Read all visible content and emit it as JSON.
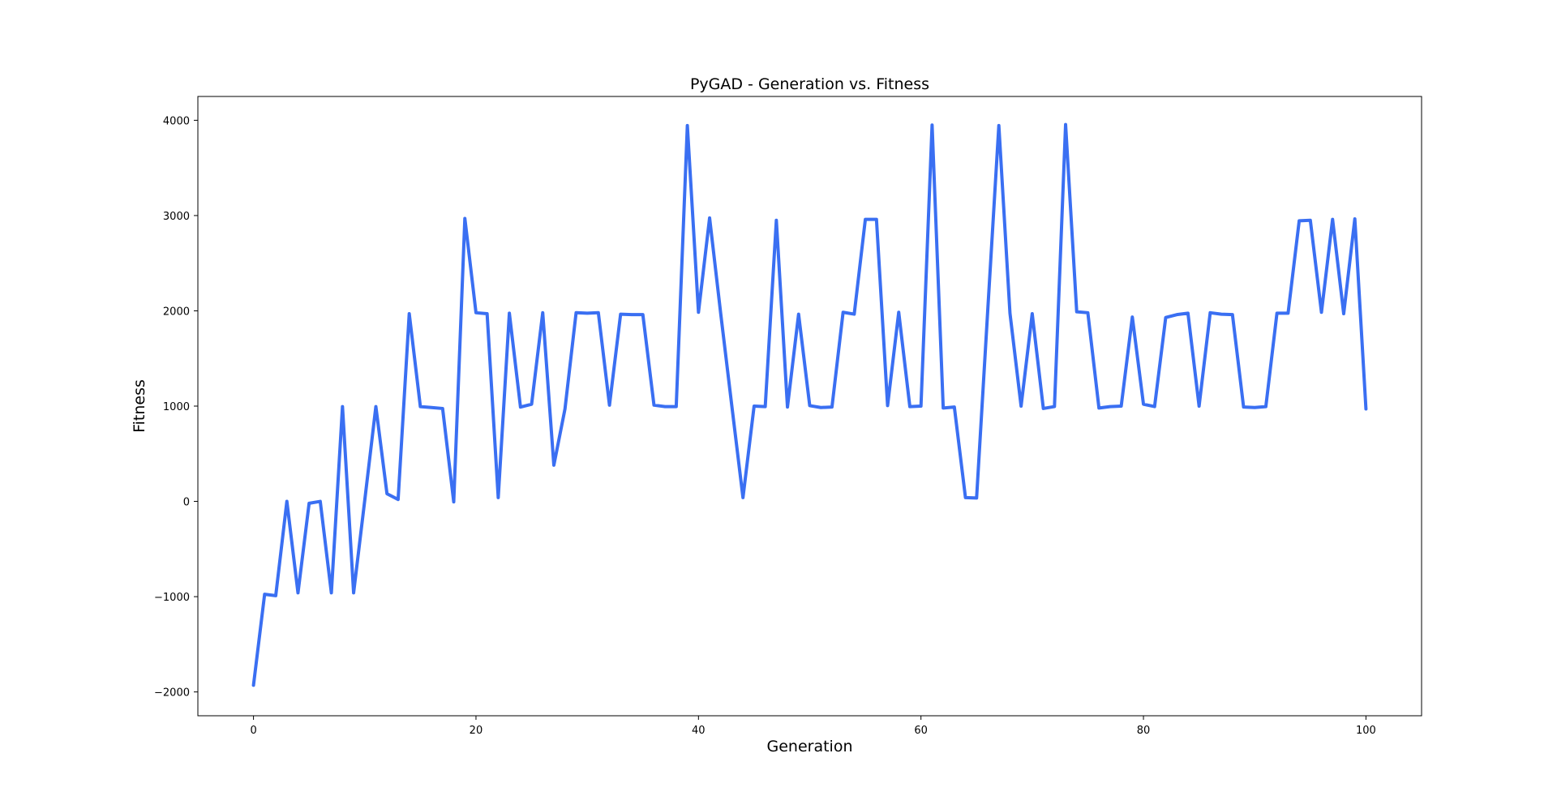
{
  "chart_data": {
    "type": "line",
    "title": "PyGAD - Generation vs. Fitness",
    "xlabel": "Generation",
    "ylabel": "Fitness",
    "xlim": [
      -5,
      105
    ],
    "ylim": [
      -2250,
      4250
    ],
    "xticks": [
      0,
      20,
      40,
      60,
      80,
      100
    ],
    "yticks": [
      -2000,
      -1000,
      0,
      1000,
      2000,
      3000,
      4000
    ],
    "ytick_labels": [
      "−2000",
      "−1000",
      "0",
      "1000",
      "2000",
      "3000",
      "4000"
    ],
    "grid": false,
    "legend": "none",
    "series": [
      {
        "color": "#3a6ff2",
        "x": [
          0,
          1,
          2,
          3,
          4,
          5,
          6,
          7,
          8,
          9,
          10,
          11,
          12,
          13,
          14,
          15,
          16,
          17,
          18,
          19,
          20,
          21,
          22,
          23,
          24,
          25,
          26,
          27,
          28,
          29,
          30,
          31,
          32,
          33,
          34,
          35,
          36,
          37,
          38,
          39,
          40,
          41,
          42,
          43,
          44,
          45,
          46,
          47,
          48,
          49,
          50,
          51,
          52,
          53,
          54,
          55,
          56,
          57,
          58,
          59,
          60,
          61,
          62,
          63,
          64,
          65,
          66,
          67,
          68,
          69,
          70,
          71,
          72,
          73,
          74,
          75,
          76,
          77,
          78,
          79,
          80,
          81,
          82,
          83,
          84,
          85,
          86,
          87,
          88,
          89,
          90,
          91,
          92,
          93,
          94,
          95,
          96,
          97,
          98,
          99,
          100
        ],
        "y": [
          -1930,
          -975,
          -990,
          0,
          -960,
          -20,
          0,
          -960,
          995,
          -960,
          10,
          995,
          80,
          20,
          1970,
          995,
          985,
          975,
          -5,
          2970,
          1980,
          1970,
          40,
          1975,
          990,
          1020,
          1980,
          380,
          970,
          1980,
          1975,
          1980,
          1010,
          1965,
          1960,
          1960,
          1010,
          995,
          995,
          3945,
          1985,
          2975,
          1970,
          1000,
          40,
          1000,
          995,
          2950,
          990,
          1965,
          1005,
          985,
          990,
          1985,
          1965,
          2960,
          2960,
          1005,
          1985,
          995,
          1000,
          3950,
          980,
          990,
          40,
          35,
          2000,
          3945,
          1975,
          1000,
          1970,
          975,
          995,
          3955,
          1990,
          1980,
          980,
          995,
          1000,
          1935,
          1020,
          995,
          1930,
          1960,
          1975,
          1000,
          1980,
          1965,
          1960,
          990,
          985,
          995,
          1975,
          1975,
          2945,
          2950,
          1985,
          2960,
          1970,
          2965,
          970
        ]
      }
    ]
  }
}
